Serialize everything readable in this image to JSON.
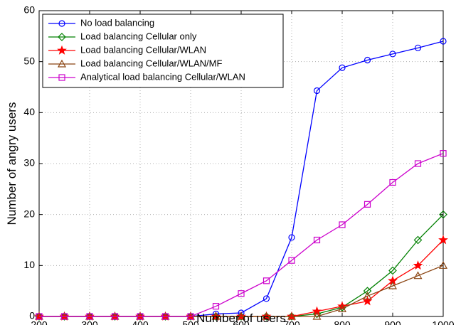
{
  "chart_data": {
    "type": "line",
    "title": "",
    "xlabel": "Number of users",
    "ylabel": "Number of angry users",
    "xlim": [
      200,
      1000
    ],
    "ylim": [
      0,
      60
    ],
    "xticks": [
      "200",
      "300",
      "400",
      "500",
      "600",
      "700",
      "800",
      "900",
      "1000"
    ],
    "yticks": [
      "0",
      "10",
      "20",
      "30",
      "40",
      "50",
      "60"
    ],
    "grid": true,
    "legend_position": "top-left",
    "x": [
      200,
      250,
      300,
      350,
      400,
      450,
      500,
      550,
      600,
      650,
      700,
      750,
      800,
      850,
      900,
      950,
      1000
    ],
    "series": [
      {
        "name": "No load balancing",
        "color": "#0000ff",
        "marker": "circle",
        "values": [
          0,
          0,
          0,
          0,
          0,
          0,
          0,
          0.5,
          0.7,
          3.5,
          15.5,
          44.3,
          48.8,
          50.3,
          51.5,
          52.7,
          54
        ]
      },
      {
        "name": "Load balancing Cellular only",
        "color": "#008000",
        "marker": "diamond",
        "values": [
          0,
          0,
          0,
          0,
          0,
          0,
          0,
          0,
          0,
          0,
          0,
          0.5,
          1.8,
          5,
          9,
          15,
          20
        ]
      },
      {
        "name": "Load balancing Cellular/WLAN",
        "color": "#ff0000",
        "marker": "star",
        "values": [
          0,
          0,
          0,
          0,
          0,
          0,
          0,
          0,
          0,
          0,
          0,
          1,
          2,
          3,
          7,
          10,
          15
        ]
      },
      {
        "name": "Load balancing Cellular/WLAN/MF",
        "color": "#8b4513",
        "marker": "triangle",
        "values": [
          0,
          0,
          0,
          0,
          0,
          0,
          0,
          0,
          0,
          0,
          0,
          0,
          1.5,
          4,
          6,
          8,
          10
        ]
      },
      {
        "name": "Analytical load balancing Cellular/WLAN",
        "color": "#cc00cc",
        "marker": "square",
        "values": [
          0,
          0,
          0,
          0,
          0,
          0,
          0,
          2,
          4.5,
          7,
          11,
          15,
          18,
          22,
          26.3,
          30,
          32
        ]
      }
    ]
  }
}
